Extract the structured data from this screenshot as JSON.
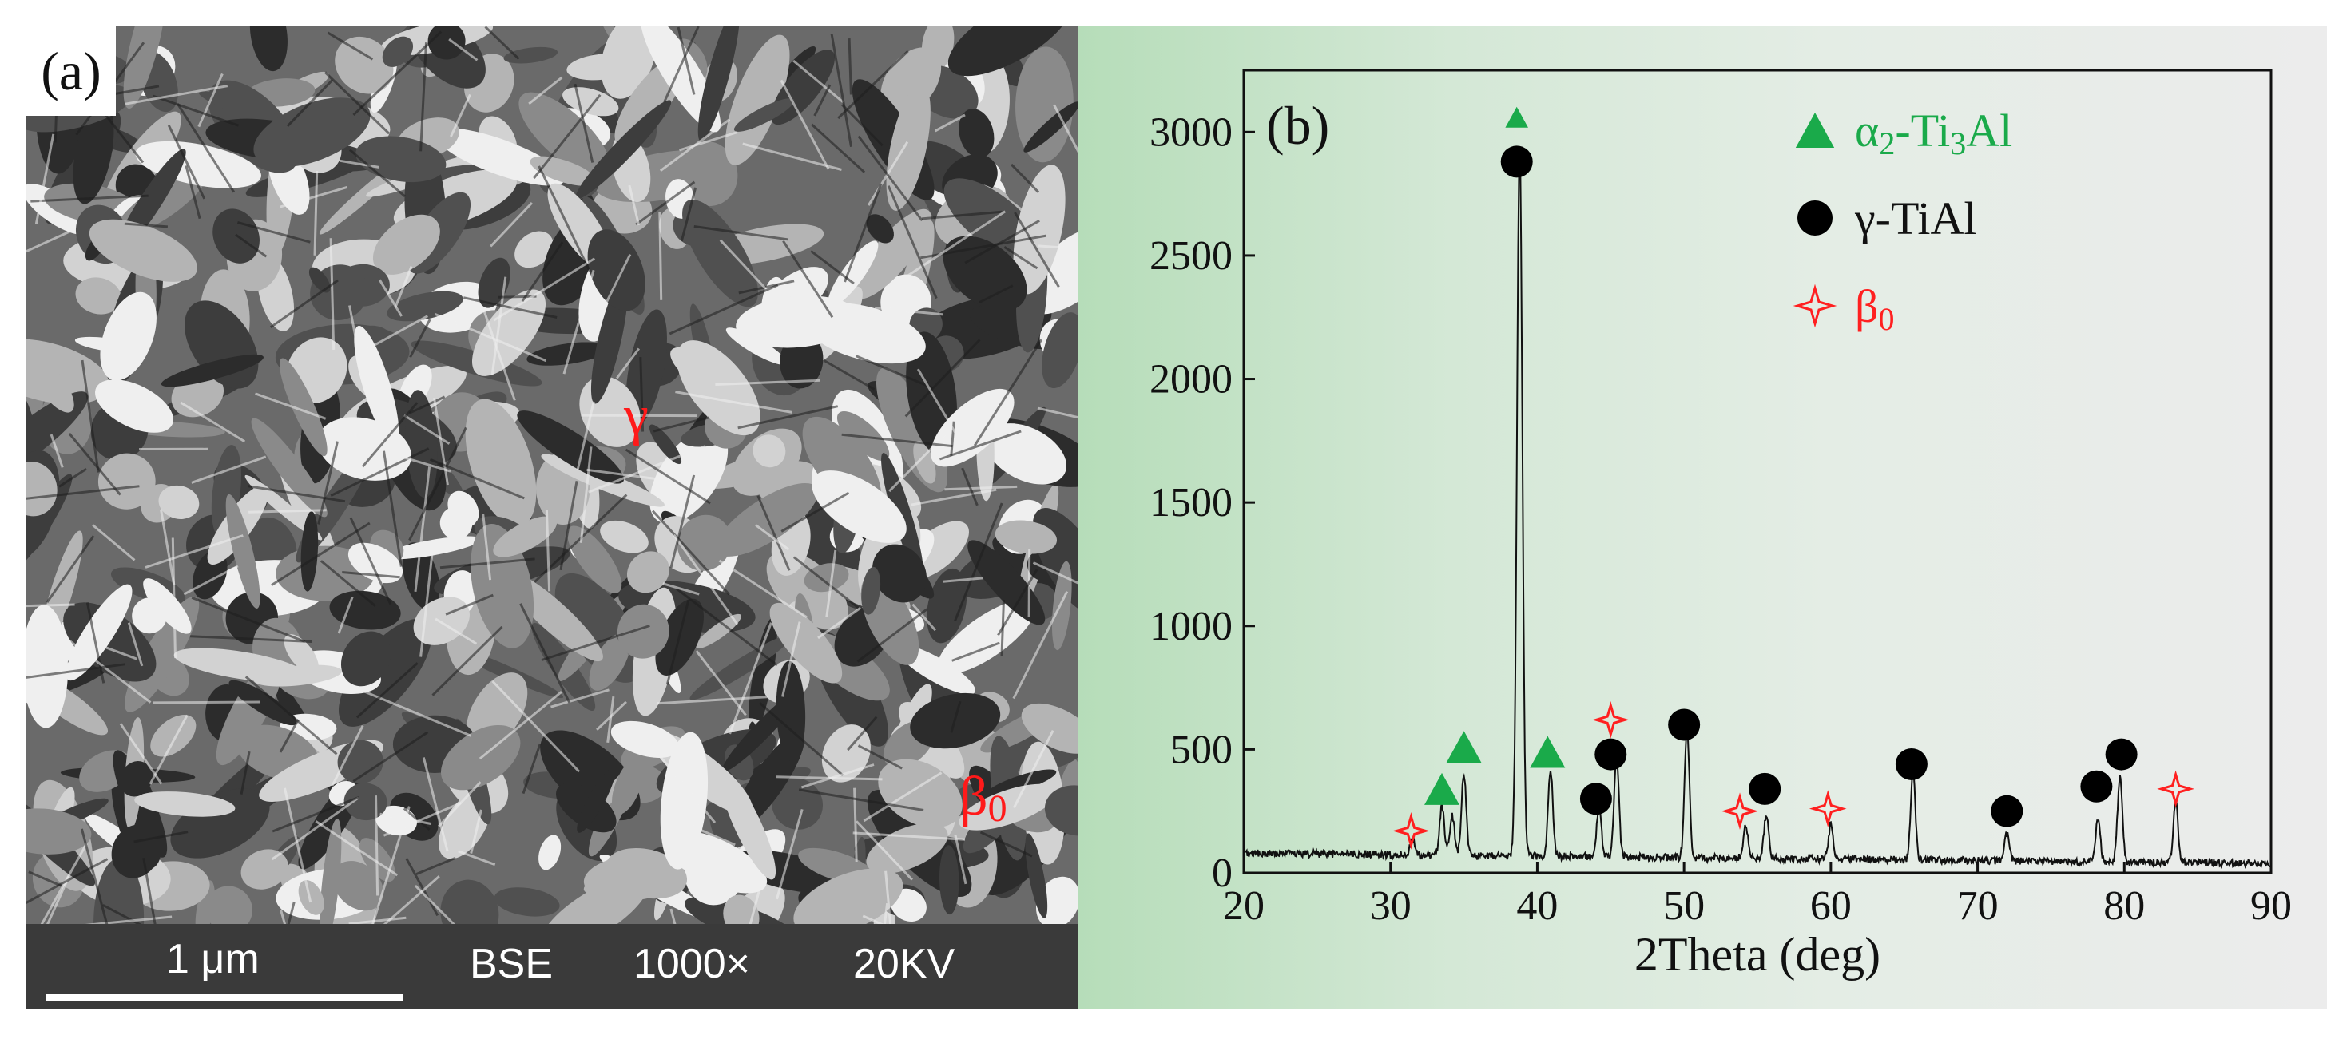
{
  "panel_a": {
    "label": "(a)",
    "phase_gamma": "γ",
    "phase_beta": "β",
    "phase_beta_sub": "0",
    "info_bar": {
      "scale": "1 μm",
      "detector": "BSE",
      "magnification": "1000×",
      "voltage": "20KV"
    }
  },
  "colors": {
    "alpha2": "#1aaa4a",
    "gamma": "#000000",
    "beta0": "#ff2020"
  },
  "chart_data": {
    "type": "line",
    "panel_label": "(b)",
    "xlabel": "2Theta (deg)",
    "ylabel": "",
    "xlim": [
      20,
      90
    ],
    "ylim": [
      0,
      3250
    ],
    "x_ticks": [
      20,
      30,
      40,
      50,
      60,
      70,
      80,
      90
    ],
    "y_ticks": [
      0,
      500,
      1000,
      1500,
      2000,
      2500,
      3000
    ],
    "baseline": 80,
    "peaks": [
      {
        "x": 31.5,
        "y": 60
      },
      {
        "x": 33.5,
        "y": 200
      },
      {
        "x": 34.2,
        "y": 160
      },
      {
        "x": 35.0,
        "y": 330
      },
      {
        "x": 38.8,
        "y": 2870
      },
      {
        "x": 40.9,
        "y": 350
      },
      {
        "x": 44.2,
        "y": 200
      },
      {
        "x": 45.4,
        "y": 410
      },
      {
        "x": 50.2,
        "y": 530
      },
      {
        "x": 54.2,
        "y": 130
      },
      {
        "x": 55.6,
        "y": 170
      },
      {
        "x": 60.0,
        "y": 140
      },
      {
        "x": 65.6,
        "y": 350
      },
      {
        "x": 72.0,
        "y": 110
      },
      {
        "x": 78.2,
        "y": 170
      },
      {
        "x": 79.7,
        "y": 350
      },
      {
        "x": 83.5,
        "y": 250
      }
    ],
    "markers": [
      {
        "phase": "alpha2",
        "x": 38.6,
        "y": 3060
      },
      {
        "phase": "alpha2",
        "x": 33.5,
        "y": 340
      },
      {
        "phase": "alpha2",
        "x": 35.0,
        "y": 510
      },
      {
        "phase": "alpha2",
        "x": 40.7,
        "y": 490
      },
      {
        "phase": "gamma",
        "x": 38.6,
        "y": 2880
      },
      {
        "phase": "gamma",
        "x": 44.0,
        "y": 300
      },
      {
        "phase": "gamma",
        "x": 45.0,
        "y": 480
      },
      {
        "phase": "gamma",
        "x": 50.0,
        "y": 600
      },
      {
        "phase": "gamma",
        "x": 55.5,
        "y": 340
      },
      {
        "phase": "gamma",
        "x": 65.5,
        "y": 440
      },
      {
        "phase": "gamma",
        "x": 72.0,
        "y": 250
      },
      {
        "phase": "gamma",
        "x": 78.1,
        "y": 350
      },
      {
        "phase": "gamma",
        "x": 79.8,
        "y": 480
      },
      {
        "phase": "beta0",
        "x": 31.4,
        "y": 170
      },
      {
        "phase": "beta0",
        "x": 45.0,
        "y": 620
      },
      {
        "phase": "beta0",
        "x": 53.8,
        "y": 250
      },
      {
        "phase": "beta0",
        "x": 59.8,
        "y": 260
      },
      {
        "phase": "beta0",
        "x": 83.5,
        "y": 340
      }
    ],
    "legend": [
      {
        "phase": "alpha2",
        "text": "α",
        "sub1": "2",
        "text2": "-Ti",
        "sub2": "3",
        "text3": "Al"
      },
      {
        "phase": "gamma",
        "text": "γ-TiAl",
        "sub1": "",
        "text2": "",
        "sub2": "",
        "text3": ""
      },
      {
        "phase": "beta0",
        "text": "β",
        "sub1": "0",
        "text2": "",
        "sub2": "",
        "text3": ""
      }
    ]
  }
}
